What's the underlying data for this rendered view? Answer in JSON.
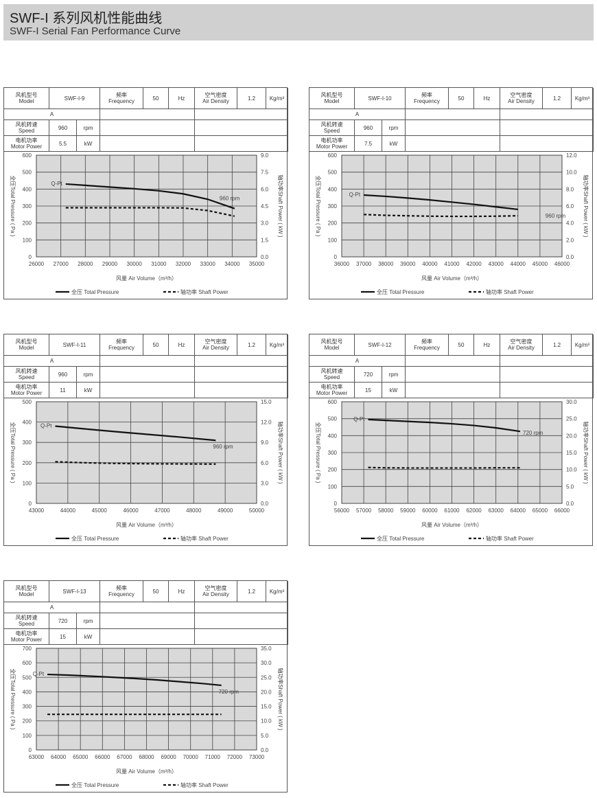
{
  "header": {
    "title_cn": "SWF-I 系列风机性能曲线",
    "title_en": "SWF-I Serial Fan Performance Curve"
  },
  "labels": {
    "model": "风机型号\nModel",
    "frequency": "频率\nFrequency",
    "frequency_value": "50",
    "frequency_unit": "Hz",
    "air_density": "空气密度\nAir Density",
    "air_density_value": "1.2",
    "air_density_unit": "Kg/m³",
    "type": "A",
    "speed": "风机转速\nSpeed",
    "speed_unit": "rpm",
    "motor_power": "电机功率\nMotor Power",
    "power_unit": "kW",
    "x_title": "风量 Air Volume（m³/h）",
    "y_left": "全压Total Pressure ( Pa )",
    "y_right": "轴功率Shaft Power ( kW )",
    "curve_label": "Q-Pt",
    "legend_pressure": "全压 Total Pressure",
    "legend_power": "轴功率 Shaft Power"
  },
  "chart_data": [
    {
      "type": "line",
      "model": "SWF-I-9",
      "speed": "960",
      "motor_power": "5.5",
      "rpm_label": "960 rpm",
      "xlim": [
        26000,
        35000
      ],
      "xticks": [
        "26000",
        "27000",
        "28000",
        "29000",
        "30000",
        "31000",
        "32000",
        "33000",
        "34000",
        "35000"
      ],
      "ylim": [
        0,
        600
      ],
      "yticks": [
        "0",
        "100",
        "200",
        "300",
        "400",
        "500",
        "600"
      ],
      "y2lim": [
        0,
        9
      ],
      "y2ticks": [
        "0.0",
        "1.5",
        "3.0",
        "4.5",
        "6.0",
        "7.5",
        "9.0"
      ],
      "series": [
        {
          "name": "Total Pressure",
          "x": [
            27200,
            28000,
            29000,
            30000,
            31000,
            32000,
            33000,
            34100
          ],
          "y": [
            430,
            422,
            412,
            402,
            390,
            372,
            340,
            285
          ]
        },
        {
          "name": "Shaft Power",
          "x": [
            27200,
            28000,
            29000,
            30000,
            31000,
            32000,
            33000,
            34100
          ],
          "y": [
            4.35,
            4.35,
            4.35,
            4.35,
            4.35,
            4.33,
            4.1,
            3.6
          ]
        }
      ]
    },
    {
      "type": "line",
      "model": "SWF-I-10",
      "speed": "960",
      "motor_power": "7.5",
      "rpm_label": "960 rpm",
      "xlim": [
        36000,
        46000
      ],
      "xticks": [
        "36000",
        "37000",
        "38000",
        "39000",
        "40000",
        "41000",
        "42000",
        "43000",
        "44000",
        "45000",
        "46000"
      ],
      "ylim": [
        0,
        600
      ],
      "yticks": [
        "0",
        "100",
        "200",
        "300",
        "400",
        "500",
        "600"
      ],
      "y2lim": [
        0,
        12
      ],
      "y2ticks": [
        "0.0",
        "2.0",
        "4.0",
        "6.0",
        "8.0",
        "10.0",
        "12.0"
      ],
      "series": [
        {
          "name": "Total Pressure",
          "x": [
            37000,
            38000,
            39000,
            40000,
            41000,
            42000,
            43000,
            44000
          ],
          "y": [
            365,
            357,
            347,
            336,
            323,
            310,
            295,
            280
          ]
        },
        {
          "name": "Shaft Power",
          "x": [
            37000,
            38000,
            39000,
            40000,
            41000,
            42000,
            43000,
            44000
          ],
          "y": [
            5.0,
            4.9,
            4.85,
            4.8,
            4.78,
            4.78,
            4.8,
            4.85
          ]
        }
      ]
    },
    {
      "type": "line",
      "model": "SWF-I-11",
      "speed": "960",
      "motor_power": "11",
      "rpm_label": "960 rpm",
      "xlim": [
        43000,
        50000
      ],
      "xticks": [
        "43000",
        "44000",
        "45000",
        "46000",
        "47000",
        "48000",
        "49000",
        "50000"
      ],
      "ylim": [
        0,
        500
      ],
      "yticks": [
        "0",
        "100",
        "200",
        "300",
        "400",
        "500"
      ],
      "y2lim": [
        0,
        15
      ],
      "y2ticks": [
        "0.0",
        "3.0",
        "6.0",
        "9.0",
        "12.0",
        "15.0"
      ],
      "series": [
        {
          "name": "Total Pressure",
          "x": [
            43600,
            44500,
            45500,
            46500,
            47500,
            48700
          ],
          "y": [
            380,
            367,
            353,
            340,
            327,
            310
          ]
        },
        {
          "name": "Shaft Power",
          "x": [
            43600,
            44500,
            45500,
            46500,
            47500,
            48700
          ],
          "y": [
            6.15,
            6.0,
            5.9,
            5.85,
            5.82,
            5.8
          ]
        }
      ]
    },
    {
      "type": "line",
      "model": "SWF-I-12",
      "speed": "720",
      "motor_power": "15",
      "rpm_label": "720 rpm",
      "xlim": [
        56000,
        66000
      ],
      "xticks": [
        "56000",
        "57000",
        "58000",
        "59000",
        "60000",
        "61000",
        "62000",
        "63000",
        "64000",
        "65000",
        "66000"
      ],
      "ylim": [
        0,
        600
      ],
      "yticks": [
        "0",
        "100",
        "200",
        "300",
        "400",
        "500",
        "600"
      ],
      "y2lim": [
        0,
        30
      ],
      "y2ticks": [
        "0.0",
        "5.0",
        "10.0",
        "15.0",
        "20.0",
        "25.0",
        "30.0"
      ],
      "series": [
        {
          "name": "Total Pressure",
          "x": [
            57200,
            58000,
            59000,
            60000,
            61000,
            62000,
            63000,
            64100
          ],
          "y": [
            495,
            490,
            484,
            478,
            470,
            460,
            446,
            425
          ]
        },
        {
          "name": "Shaft Power",
          "x": [
            57200,
            58000,
            59000,
            60000,
            61000,
            62000,
            63000,
            64100
          ],
          "y": [
            10.6,
            10.5,
            10.45,
            10.45,
            10.45,
            10.45,
            10.5,
            10.5
          ]
        }
      ]
    },
    {
      "type": "line",
      "model": "SWF-I-13",
      "speed": "720",
      "motor_power": "15",
      "rpm_label": "720 rpm",
      "xlim": [
        63000,
        73000
      ],
      "xticks": [
        "63000",
        "64000",
        "65000",
        "66000",
        "67000",
        "68000",
        "69000",
        "70000",
        "71000",
        "72000",
        "73000"
      ],
      "ylim": [
        0,
        700
      ],
      "yticks": [
        "0",
        "100",
        "200",
        "300",
        "400",
        "500",
        "600",
        "700"
      ],
      "y2lim": [
        0,
        35
      ],
      "y2ticks": [
        "0.0",
        "5.0",
        "10.0",
        "15.0",
        "20.0",
        "25.0",
        "30.0",
        "35.0"
      ],
      "series": [
        {
          "name": "Total Pressure",
          "x": [
            63500,
            64500,
            65500,
            66500,
            67500,
            68500,
            69500,
            70500,
            71400
          ],
          "y": [
            520,
            515,
            508,
            500,
            492,
            482,
            470,
            458,
            445
          ]
        },
        {
          "name": "Shaft Power",
          "x": [
            63500,
            64500,
            65500,
            66500,
            67500,
            68500,
            69500,
            70500,
            71400
          ],
          "y": [
            12.25,
            12.25,
            12.25,
            12.25,
            12.25,
            12.25,
            12.25,
            12.25,
            12.25
          ]
        }
      ]
    }
  ]
}
